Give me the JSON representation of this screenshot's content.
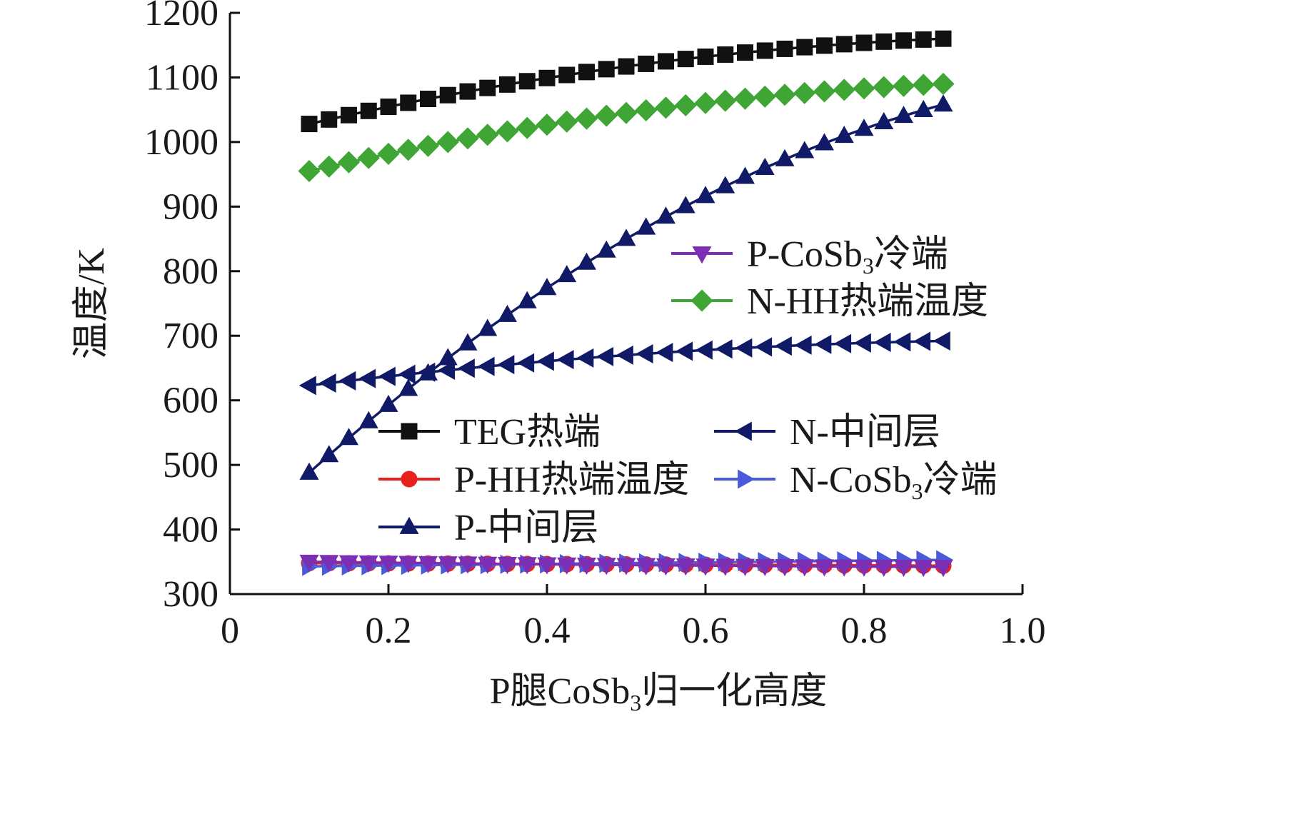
{
  "chart_data": {
    "type": "line",
    "xlabel": "P腿CoSb3归一化高度",
    "xlabel_parts": {
      "pre": "P腿CoSb",
      "sub": "3",
      "post": "归一化高度"
    },
    "ylabel": "温度/K",
    "xlim": [
      0,
      1.0
    ],
    "ylim": [
      300,
      1200
    ],
    "x_ticks": [
      0,
      0.2,
      0.4,
      0.6,
      0.8,
      1.0
    ],
    "x_tick_labels": [
      "0",
      "0.2",
      "0.4",
      "0.6",
      "0.8",
      "1.0"
    ],
    "y_ticks": [
      300,
      400,
      500,
      600,
      700,
      800,
      900,
      1000,
      1100,
      1200
    ],
    "y_tick_labels": [
      "300",
      "400",
      "500",
      "600",
      "700",
      "800",
      "900",
      "1000",
      "1100",
      "1200"
    ],
    "x_range": {
      "start": 0.1,
      "end": 0.9,
      "points": 33
    },
    "series": [
      {
        "name": "TEG热端",
        "color": "#111111",
        "marker": "square",
        "y_start": 1028,
        "y_mid": 1117,
        "y_end": 1160,
        "legend_group": "bottom",
        "legend_column": 0,
        "legend_row": 0
      },
      {
        "name": "N-HH热端温度",
        "color": "#3fa535",
        "marker": "diamond",
        "y_start": 955,
        "y_mid": 1045,
        "y_end": 1090,
        "legend_group": "top",
        "legend_column": 0,
        "legend_row": 1
      },
      {
        "name": "P-中间层",
        "color": "#111a66",
        "marker": "triangle-up",
        "y_start": 488,
        "y_mid": 850,
        "y_end": 1058,
        "legend_group": "bottom",
        "legend_column": 0,
        "legend_row": 2
      },
      {
        "name": "N-中间层",
        "color": "#111a66",
        "marker": "triangle-left",
        "y_start": 623,
        "y_mid": 670,
        "y_end": 692,
        "legend_group": "bottom",
        "legend_column": 1,
        "legend_row": 0
      },
      {
        "name": "P-HH热端温度",
        "color": "#e8201e",
        "marker": "circle",
        "y_start": 348,
        "y_mid": 346,
        "y_end": 344,
        "legend_group": "bottom",
        "legend_column": 0,
        "legend_row": 1
      },
      {
        "name": "N-CoSb3冷端",
        "name_parts": {
          "pre": "N-CoSb",
          "sub": "3",
          "post": "冷端"
        },
        "color": "#4a5ad8",
        "marker": "triangle-right",
        "y_start": 343,
        "y_mid": 348,
        "y_end": 353,
        "legend_group": "bottom",
        "legend_column": 1,
        "legend_row": 1
      },
      {
        "name": "P-CoSb3冷端",
        "name_parts": {
          "pre": "P-CoSb",
          "sub": "3",
          "post": "冷端"
        },
        "color": "#7b2fb5",
        "marker": "triangle-down",
        "y_start": 350,
        "y_mid": 345,
        "y_end": 342,
        "legend_group": "top",
        "legend_column": 0,
        "legend_row": 0
      }
    ]
  }
}
